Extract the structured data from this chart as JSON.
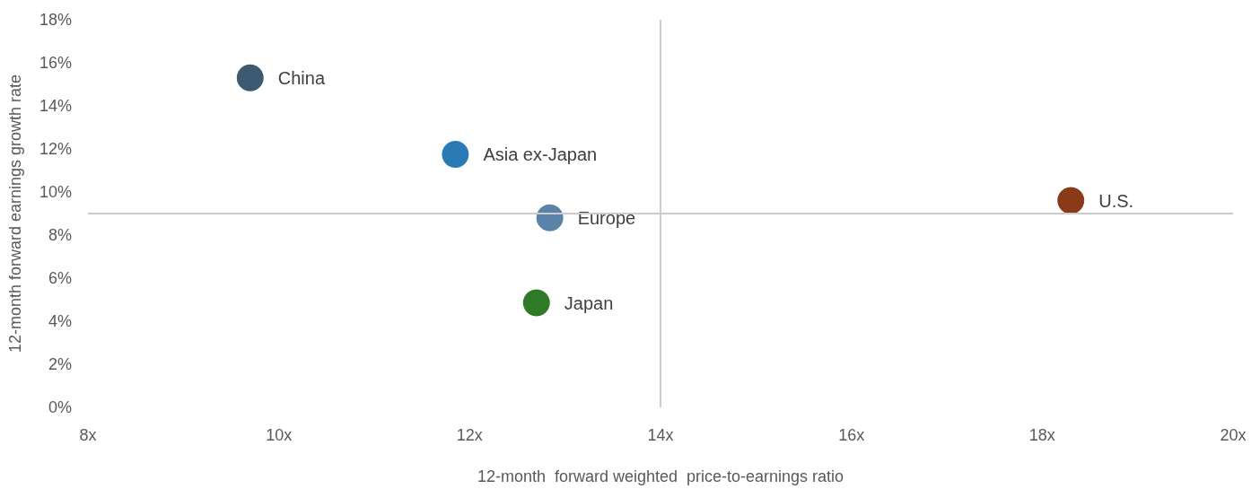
{
  "chart_data": {
    "type": "scatter",
    "xlabel": "12-month  forward weighted  price-to-earnings ratio",
    "ylabel": "12-month forward earnings growth rate",
    "series": [
      {
        "name": "China",
        "color": "#3d5a73",
        "x": [
          9.7
        ],
        "values": [
          15.3
        ]
      },
      {
        "name": "Asia ex-Japan",
        "color": "#2a7ab5",
        "x": [
          11.85
        ],
        "values": [
          11.75
        ]
      },
      {
        "name": "Europe",
        "color": "#5b82a8",
        "x": [
          12.84
        ],
        "values": [
          8.8
        ]
      },
      {
        "name": "Japan",
        "color": "#2e7a27",
        "x": [
          12.7
        ],
        "values": [
          4.85
        ]
      },
      {
        "name": "U.S.",
        "color": "#8a3a16",
        "x": [
          18.3
        ],
        "values": [
          9.6
        ]
      }
    ],
    "xlim": [
      8,
      20
    ],
    "xticks": [
      {
        "value": 8,
        "label": "8x"
      },
      {
        "value": 10,
        "label": "10x"
      },
      {
        "value": 12,
        "label": "12x"
      },
      {
        "value": 14,
        "label": "14x"
      },
      {
        "value": 16,
        "label": "16x"
      },
      {
        "value": 18,
        "label": "18x"
      },
      {
        "value": 20,
        "label": "20x"
      }
    ],
    "ylim": [
      0,
      18
    ],
    "yticks": [
      {
        "value": 0,
        "label": "0%"
      },
      {
        "value": 2,
        "label": "2%"
      },
      {
        "value": 4,
        "label": "4%"
      },
      {
        "value": 6,
        "label": "6%"
      },
      {
        "value": 8,
        "label": "8%"
      },
      {
        "value": 10,
        "label": "10%"
      },
      {
        "value": 12,
        "label": "12%"
      },
      {
        "value": 14,
        "label": "14%"
      },
      {
        "value": 16,
        "label": "16%"
      },
      {
        "value": 18,
        "label": "18%"
      }
    ],
    "ref_lines": [
      {
        "axis": "x",
        "value": 14,
        "color": "#cccccc"
      },
      {
        "axis": "y",
        "value": 9,
        "color": "#cccccc"
      }
    ],
    "grid": false,
    "legend": false,
    "marker": "circle"
  }
}
